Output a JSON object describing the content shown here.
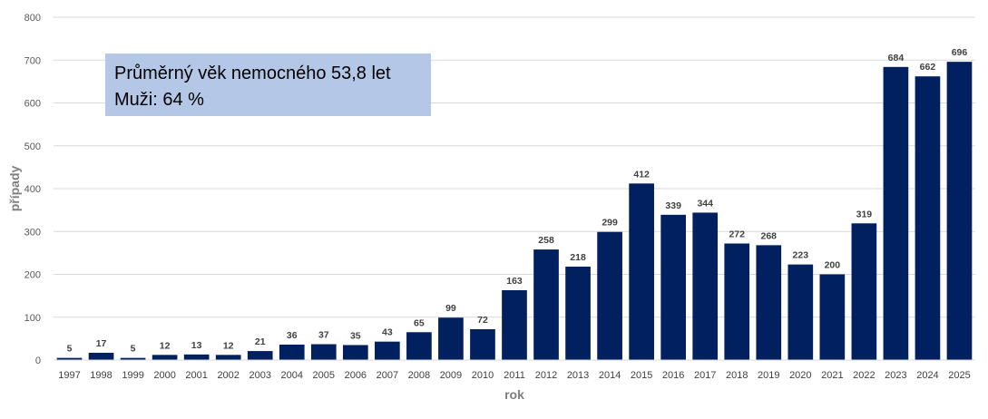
{
  "chart_data": {
    "type": "bar",
    "categories": [
      "1997",
      "1998",
      "1999",
      "2000",
      "2001",
      "2002",
      "2003",
      "2004",
      "2005",
      "2006",
      "2007",
      "2008",
      "2009",
      "2010",
      "2011",
      "2012",
      "2013",
      "2014",
      "2015",
      "2016",
      "2017",
      "2018",
      "2019",
      "2020",
      "2021",
      "2022",
      "2023",
      "2024",
      "2025"
    ],
    "values": [
      5,
      17,
      5,
      12,
      13,
      12,
      21,
      36,
      37,
      35,
      43,
      65,
      99,
      72,
      163,
      258,
      218,
      299,
      412,
      339,
      344,
      272,
      268,
      223,
      200,
      319,
      684,
      662,
      696
    ],
    "xlabel": "rok",
    "ylabel": "případy",
    "ylim": [
      0,
      800
    ],
    "yticks": [
      0,
      100,
      200,
      300,
      400,
      500,
      600,
      700,
      800
    ],
    "grid": true,
    "bar_color": "#002060",
    "data_labels": true
  },
  "annotation": {
    "line1": "Průměrný věk nemocného 53,8 let",
    "line2": "Muži: 64 %",
    "background": "#b4c7e7"
  }
}
